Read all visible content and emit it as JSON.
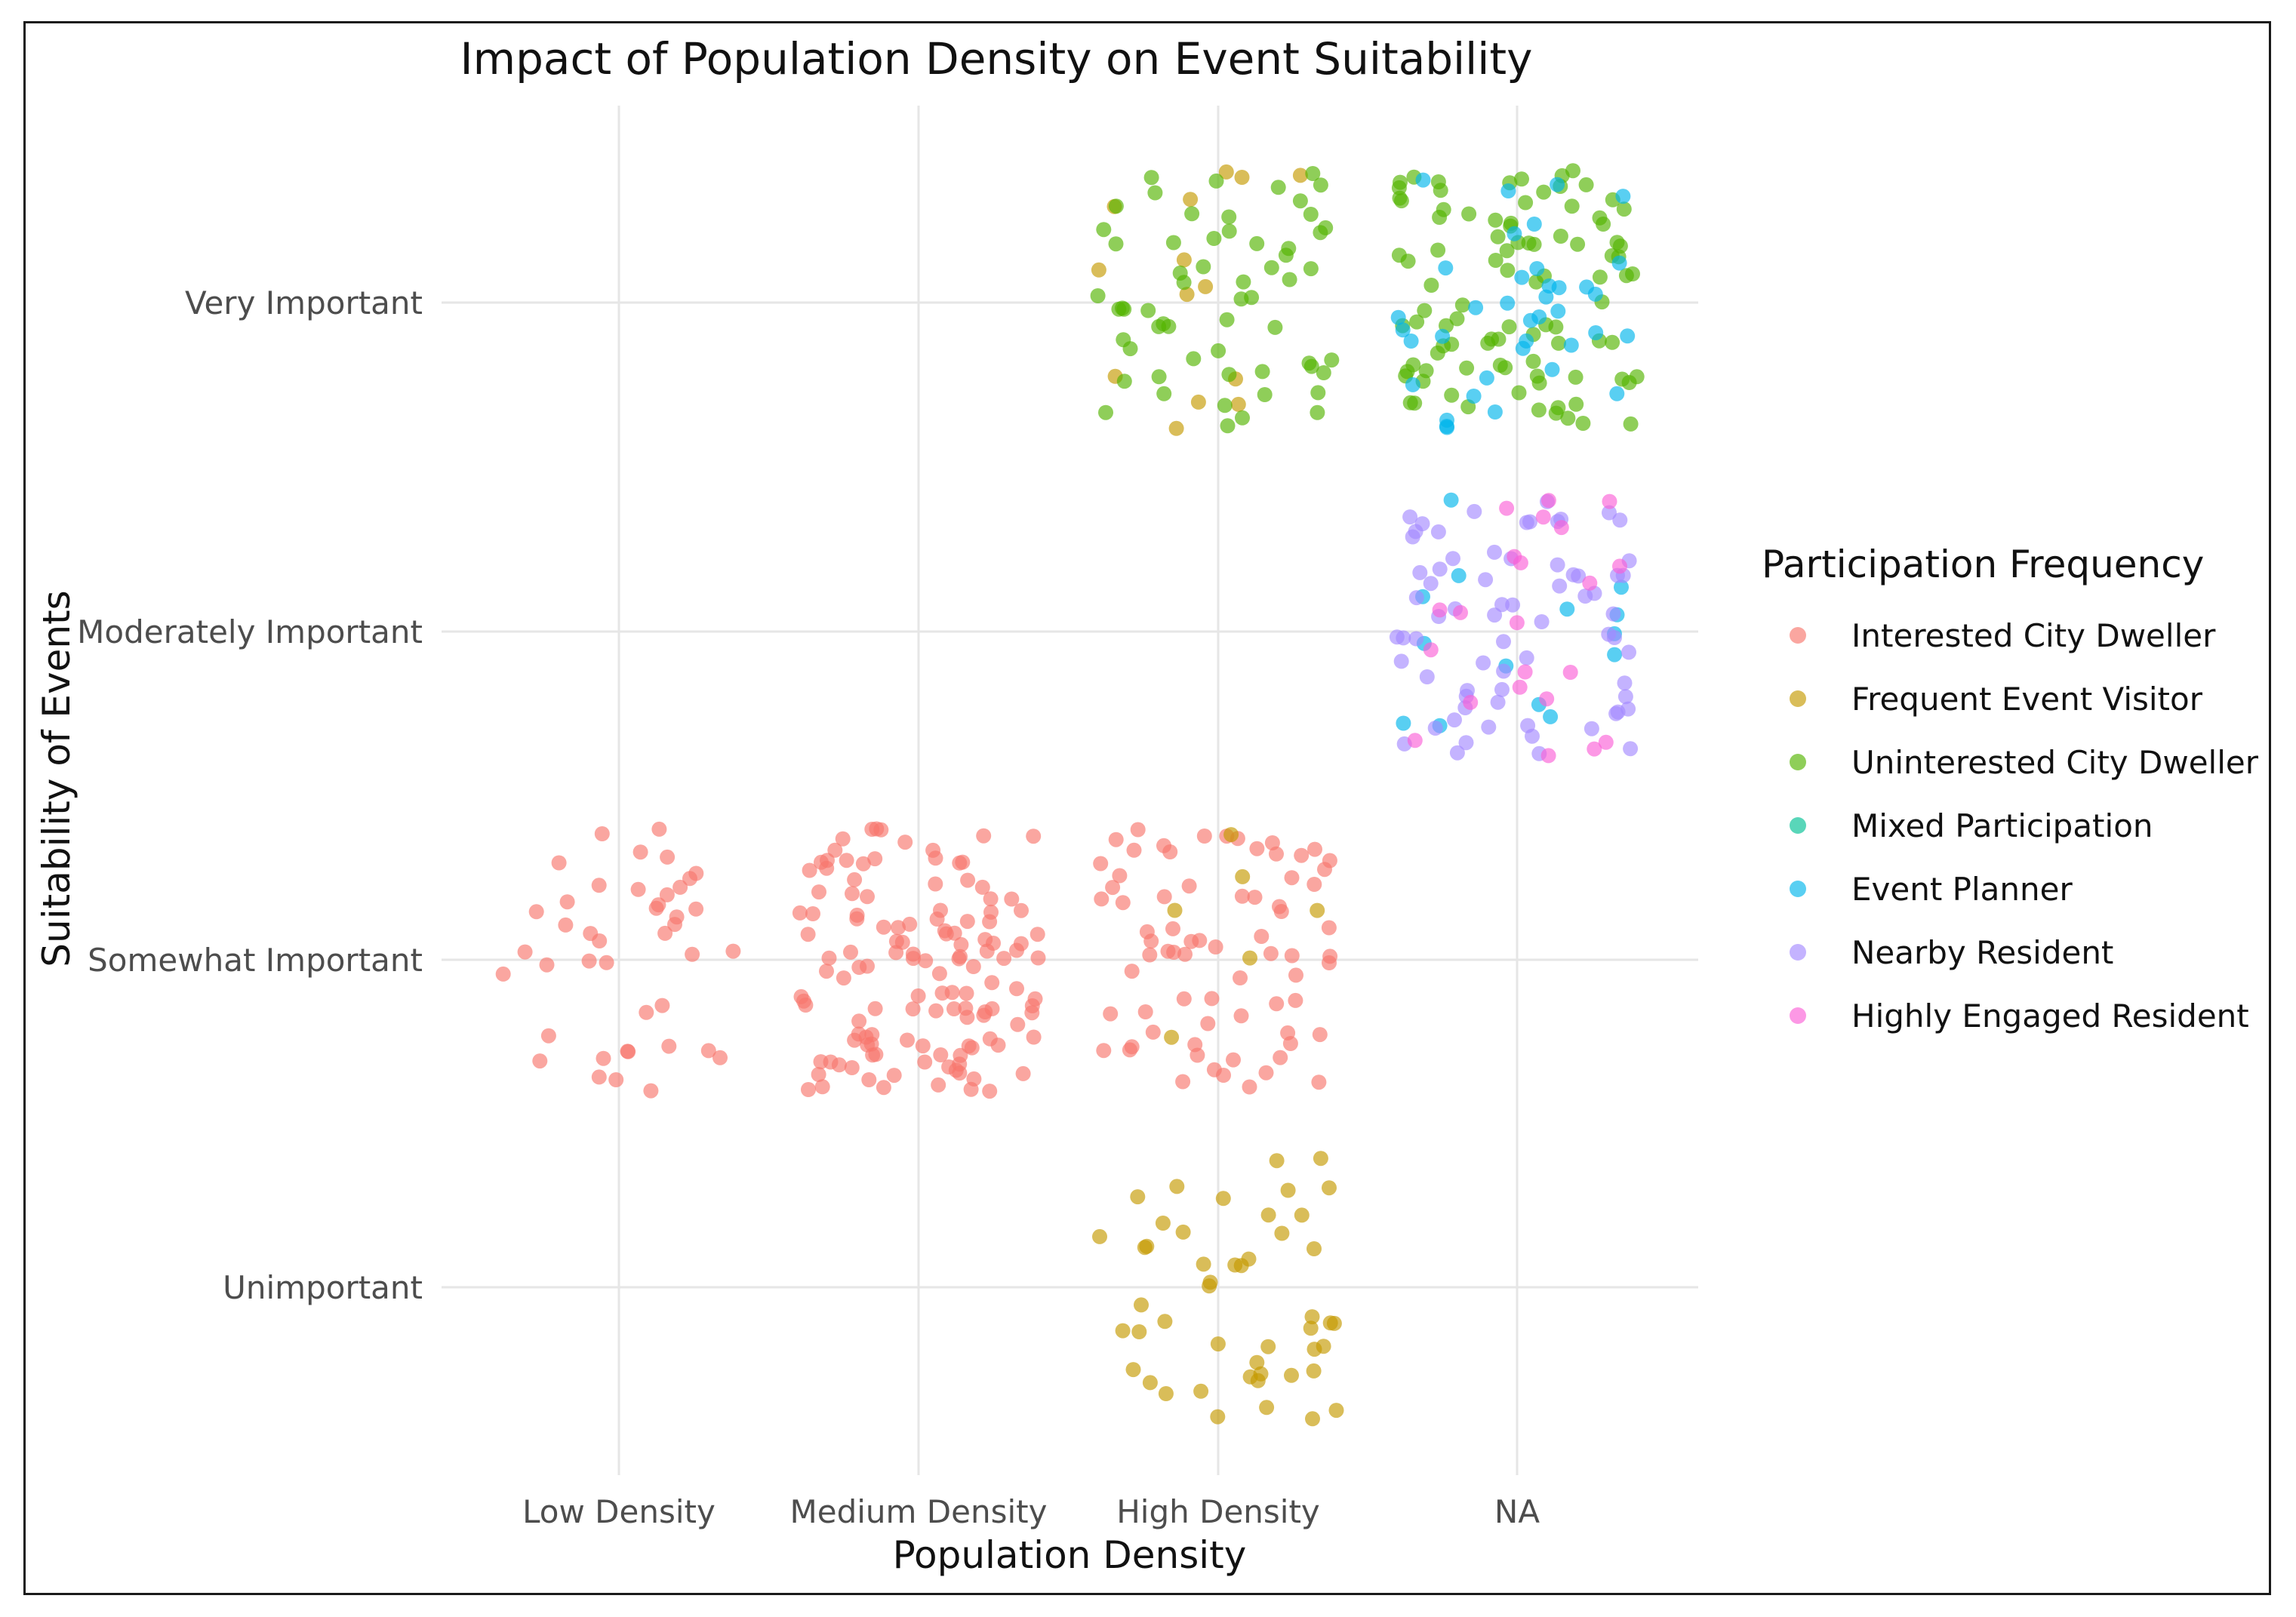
{
  "chart_data": {
    "type": "scatter",
    "jitter": true,
    "title": "Impact of Population Density on Event Suitability",
    "xlabel": "Population Density",
    "ylabel": "Suitability of Events",
    "x_categories": [
      "Low Density",
      "Medium Density",
      "High Density",
      "NA"
    ],
    "y_categories": [
      "Unimportant",
      "Somewhat Important",
      "Moderately Important",
      "Very Important"
    ],
    "grid": true,
    "point_alpha": 0.65,
    "legend": {
      "title": "Participation Frequency",
      "position": "right"
    },
    "series": [
      {
        "name": "Interested City Dweller",
        "color": "#F8766D",
        "counts": {
          "Low Density|Somewhat Important": 42,
          "Medium Density|Somewhat Important": 130,
          "High Density|Somewhat Important": 72
        }
      },
      {
        "name": "Frequent Event Visitor",
        "color": "#C49A00",
        "counts": {
          "High Density|Very Important": 14,
          "High Density|Somewhat Important": 6,
          "High Density|Unimportant": 48
        }
      },
      {
        "name": "Uninterested City Dweller",
        "color": "#53B400",
        "counts": {
          "High Density|Very Important": 60,
          "NA|Very Important": 95
        }
      },
      {
        "name": "Mixed Participation",
        "color": "#00C094",
        "counts": {}
      },
      {
        "name": "Event Planner",
        "color": "#00B6EB",
        "counts": {
          "NA|Very Important": 38,
          "NA|Moderately Important": 14
        }
      },
      {
        "name": "Nearby Resident",
        "color": "#A58AFF",
        "counts": {
          "NA|Moderately Important": 70
        }
      },
      {
        "name": "Highly Engaged Resident",
        "color": "#FB61D7",
        "counts": {
          "NA|Moderately Important": 22
        }
      }
    ]
  }
}
